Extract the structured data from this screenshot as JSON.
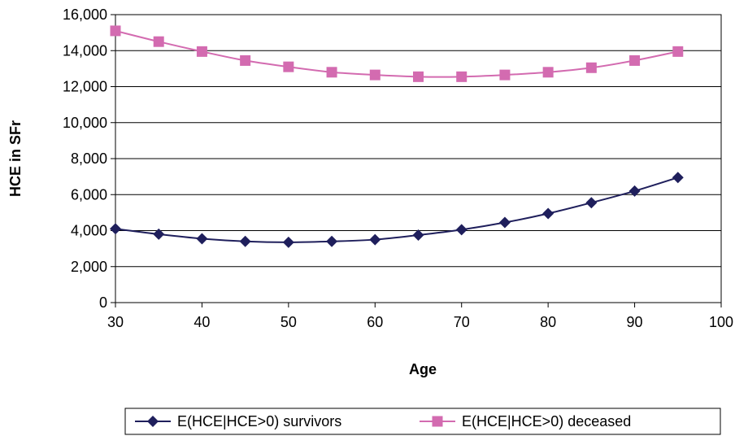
{
  "chart_data": {
    "type": "line",
    "title": "",
    "xlabel": "Age",
    "ylabel": "HCE in SFr",
    "xlim": [
      30,
      100
    ],
    "ylim": [
      0,
      16000
    ],
    "x_ticks": [
      "30",
      "40",
      "50",
      "60",
      "70",
      "80",
      "90",
      "100"
    ],
    "y_ticks": [
      "0",
      "2,000",
      "4,000",
      "6,000",
      "8,000",
      "10,000",
      "12,000",
      "14,000",
      "16,000"
    ],
    "grid": "horizontal",
    "legend_position": "bottom",
    "x": [
      30,
      35,
      40,
      45,
      50,
      55,
      60,
      65,
      70,
      75,
      80,
      85,
      90,
      95
    ],
    "series": [
      {
        "name": "E(HCE|HCE>0) survivors",
        "color": "#1f1f5c",
        "marker": "diamond",
        "values": [
          4100,
          3800,
          3550,
          3400,
          3350,
          3400,
          3500,
          3750,
          4050,
          4450,
          4950,
          5550,
          6200,
          6950
        ]
      },
      {
        "name": "E(HCE|HCE>0) deceased",
        "color": "#d36bb0",
        "marker": "square",
        "values": [
          15100,
          14500,
          13950,
          13450,
          13100,
          12800,
          12650,
          12550,
          12550,
          12650,
          12800,
          13050,
          13450,
          13950
        ]
      }
    ]
  }
}
